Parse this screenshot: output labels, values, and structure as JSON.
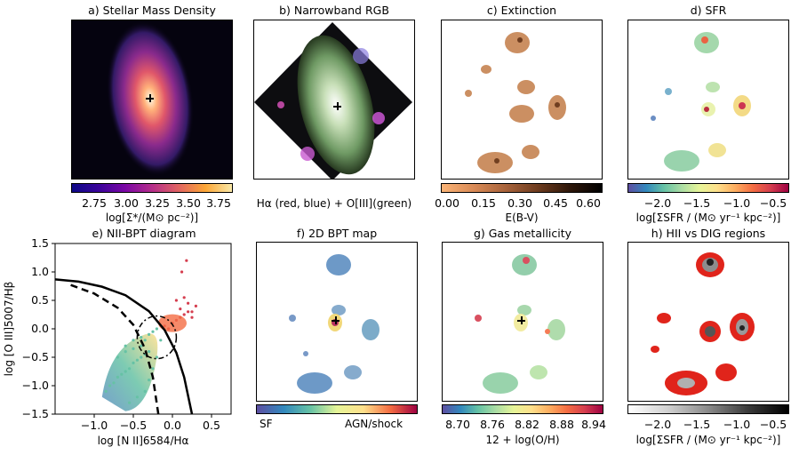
{
  "panels": {
    "a": {
      "title": "a) Stellar Mass Density",
      "cbar_ticks": [
        "2.75",
        "3.00",
        "3.25",
        "3.50",
        "3.75"
      ],
      "cbar_label": "log[Σ*/(M⊙ pc⁻²)]"
    },
    "b": {
      "title": "b) Narrowband RGB",
      "caption": "Hα (red, blue) + O[III](green)"
    },
    "c": {
      "title": "c) Extinction",
      "cbar_ticks": [
        "0.00",
        "0.15",
        "0.30",
        "0.45",
        "0.60"
      ],
      "cbar_label": "E(B-V)"
    },
    "d": {
      "title": "d) SFR",
      "cbar_ticks": [
        "−2.0",
        "−1.5",
        "−1.0",
        "−0.5"
      ],
      "cbar_label": "log[ΣSFR / (M⊙ yr⁻¹ kpc⁻²)]"
    },
    "e": {
      "title": "e) NII-BPT diagram"
    },
    "f": {
      "title": "f) 2D BPT map",
      "cbar_left": "SF",
      "cbar_right": "AGN/shock"
    },
    "g": {
      "title": "g) Gas metallicity",
      "cbar_ticks": [
        "8.70",
        "8.76",
        "8.82",
        "8.88",
        "8.94"
      ],
      "cbar_label": "12 + log(O/H)"
    },
    "h": {
      "title": "h) HII vs DIG regions",
      "cbar_ticks": [
        "−2.0",
        "−1.5",
        "−1.0",
        "−0.5"
      ],
      "cbar_label": "log[ΣSFR / (M⊙ yr⁻¹ kpc⁻²)]"
    }
  },
  "colors": {
    "accent_red": "#e0241b",
    "sf_blue": "#5e8fc2",
    "agn_red": "#b01c4e"
  },
  "chart_data": [
    {
      "type": "scatter",
      "title": "e) NII-BPT diagram",
      "xlabel": "log [N II]6584/Hα",
      "ylabel": "log [O III]5007/Hβ",
      "xlim": [
        -1.5,
        0.75
      ],
      "ylim": [
        -1.5,
        1.5
      ],
      "x_ticks": [
        "−1.0",
        "−0.5",
        "0.0",
        "0.5"
      ],
      "y_ticks": [
        "−1.5",
        "−1.0",
        "−0.5",
        "0.0",
        "0.5",
        "1.0",
        "1.5"
      ],
      "x_tick_values": [
        -1.0,
        -0.5,
        0.0,
        0.5
      ],
      "y_tick_values": [
        -1.5,
        -1.0,
        -0.5,
        0.0,
        0.5,
        1.0,
        1.5
      ],
      "series": [
        {
          "kind": "points-sf",
          "x": [
            -0.85,
            -0.8,
            -0.75,
            -0.7,
            -0.65,
            -0.6,
            -0.55,
            -0.5,
            -0.45,
            -0.4,
            -0.35,
            -0.3,
            -0.6,
            -0.5,
            -0.4,
            -0.3,
            -0.25,
            -0.2,
            -0.55,
            -0.45,
            -0.35,
            -0.3,
            -0.25,
            -0.2,
            -0.7,
            -0.6,
            -0.5,
            -0.4,
            -0.35,
            -0.15
          ],
          "y": [
            -1.1,
            -1.0,
            -0.95,
            -0.85,
            -0.8,
            -0.75,
            -0.7,
            -0.6,
            -0.55,
            -0.5,
            -0.45,
            -0.4,
            -0.3,
            -0.2,
            -0.15,
            -0.1,
            -0.05,
            0.0,
            -1.3,
            -1.2,
            -1.1,
            -0.9,
            -0.7,
            -0.5,
            -0.5,
            -0.4,
            -0.35,
            -0.3,
            -0.2,
            -0.2
          ]
        },
        {
          "kind": "points-agn",
          "x": [
            -0.1,
            0.0,
            0.05,
            0.1,
            0.15,
            0.2,
            0.25,
            0.3,
            -0.05,
            0.1,
            0.2,
            0.05,
            0.15,
            0.25,
            0.12,
            0.18
          ],
          "y": [
            0.05,
            0.1,
            0.15,
            0.2,
            0.25,
            0.3,
            0.2,
            0.4,
            0.0,
            0.35,
            0.45,
            0.5,
            0.55,
            0.3,
            1.0,
            1.2
          ]
        }
      ],
      "curves": [
        {
          "name": "",
          "style": "solid",
          "x": [
            -1.5,
            -1.2,
            -0.9,
            -0.6,
            -0.3,
            -0.1,
            0.05,
            0.15,
            0.25
          ],
          "y": [
            0.87,
            0.83,
            0.74,
            0.59,
            0.31,
            -0.02,
            -0.42,
            -0.85,
            -1.5
          ]
        },
        {
          "name": "",
          "style": "dashed",
          "x": [
            -1.3,
            -1.0,
            -0.7,
            -0.5,
            -0.35,
            -0.25,
            -0.18
          ],
          "y": [
            0.77,
            0.62,
            0.37,
            0.07,
            -0.35,
            -0.85,
            -1.5
          ]
        }
      ]
    }
  ]
}
